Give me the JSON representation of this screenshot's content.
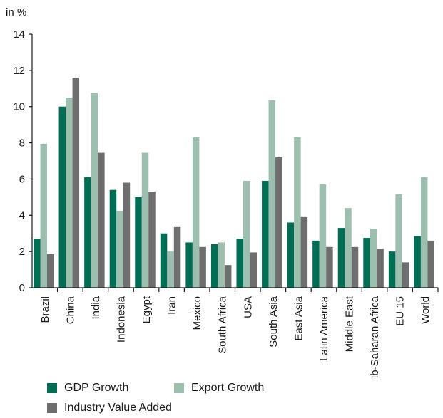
{
  "chart_data": {
    "type": "bar",
    "ylabel": "in %",
    "ylim": [
      0,
      14
    ],
    "yticks": [
      0,
      2,
      4,
      6,
      8,
      10,
      12,
      14
    ],
    "grid": false,
    "legend_placement": "bottom",
    "categories": [
      "Brazil",
      "China",
      "India",
      "Indonesia",
      "Egypt",
      "Iran",
      "Mexico",
      "South Africa",
      "USA",
      "South Asia",
      "East Asia",
      "Latin America",
      "Middle East",
      "Sub-Saharan Africa",
      "EU 15",
      "World"
    ],
    "series": [
      {
        "name": "GDP Growth",
        "color": "#006e54",
        "values": [
          2.7,
          10.0,
          6.1,
          5.4,
          5.0,
          3.0,
          2.5,
          2.4,
          2.7,
          5.9,
          3.6,
          2.6,
          3.3,
          2.75,
          2.0,
          2.85
        ]
      },
      {
        "name": "Export Growth",
        "color": "#9dbfb0",
        "values": [
          7.95,
          10.5,
          10.75,
          4.25,
          7.45,
          2.0,
          8.3,
          2.5,
          5.9,
          10.35,
          8.3,
          5.7,
          4.4,
          3.25,
          5.15,
          6.1
        ]
      },
      {
        "name": "Industry Value Added",
        "color": "#6e6e6e",
        "values": [
          1.85,
          11.6,
          7.45,
          5.8,
          5.3,
          3.35,
          2.25,
          1.25,
          1.95,
          7.2,
          3.9,
          2.25,
          2.25,
          2.15,
          1.4,
          2.6
        ]
      }
    ]
  }
}
